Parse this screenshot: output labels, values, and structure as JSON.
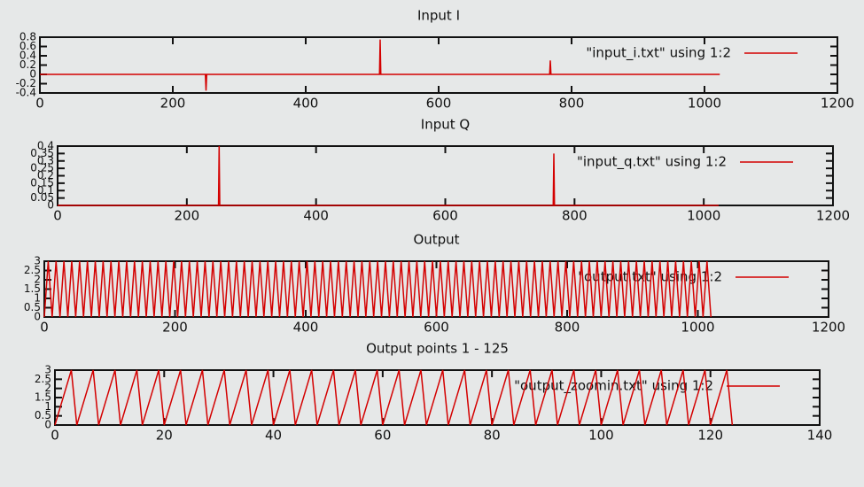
{
  "chart_data": [
    {
      "type": "line",
      "title": "Input I",
      "xlim": [
        0,
        1200
      ],
      "xticks": [
        0,
        200,
        400,
        600,
        800,
        1000,
        1200
      ],
      "ylim": [
        -0.4,
        0.8
      ],
      "yticks": [
        -0.4,
        -0.2,
        0,
        0.2,
        0.4,
        0.6,
        0.8
      ],
      "series": [
        {
          "name": "\"input_i.txt\" using 1:2",
          "color": "#d40000",
          "x": [
            0,
            249,
            250,
            251,
            511,
            512,
            513,
            767,
            768,
            769,
            1023
          ],
          "values": [
            0,
            0,
            -0.35,
            0,
            0,
            0.75,
            0,
            0,
            0.3,
            0,
            0
          ]
        }
      ]
    },
    {
      "type": "line",
      "title": "Input Q",
      "xlim": [
        0,
        1200
      ],
      "xticks": [
        0,
        200,
        400,
        600,
        800,
        1000,
        1200
      ],
      "ylim": [
        0,
        0.4
      ],
      "yticks": [
        0,
        0.05,
        0.1,
        0.15,
        0.2,
        0.25,
        0.3,
        0.35,
        0.4
      ],
      "series": [
        {
          "name": "\"input_q.txt\" using 1:2",
          "color": "#d40000",
          "x": [
            0,
            249,
            250,
            251,
            767,
            768,
            769,
            1023
          ],
          "values": [
            0,
            0,
            0.4,
            0,
            0,
            0.35,
            0,
            0
          ]
        }
      ]
    },
    {
      "type": "line",
      "title": "Output",
      "xlim": [
        0,
        1200
      ],
      "xticks": [
        0,
        200,
        400,
        600,
        800,
        1000,
        1200
      ],
      "ylim": [
        0,
        3
      ],
      "yticks": [
        0,
        0.5,
        1,
        1.5,
        2,
        2.5,
        3
      ],
      "series": [
        {
          "name": "\"output.txt\" using 1:2",
          "color": "#d40000",
          "x": [
            0,
            6,
            12,
            18,
            24,
            30,
            36,
            42,
            48,
            54,
            60,
            66,
            72,
            78,
            84,
            90,
            96,
            102,
            108,
            114,
            120,
            126,
            132,
            138,
            144,
            150,
            156,
            162,
            168,
            174,
            180,
            186,
            192,
            198,
            204,
            210,
            216,
            222,
            228,
            234,
            240,
            246,
            252,
            258,
            264,
            270,
            276,
            282,
            288,
            294,
            300,
            306,
            312,
            318,
            324,
            330,
            336,
            342,
            348,
            354,
            360,
            366,
            372,
            378,
            384,
            390,
            396,
            402,
            408,
            414,
            420,
            426,
            432,
            438,
            444,
            450,
            456,
            462,
            468,
            474,
            480,
            486,
            492,
            498,
            504,
            510,
            516,
            522,
            528,
            534,
            540,
            546,
            552,
            558,
            564,
            570,
            576,
            582,
            588,
            594,
            600,
            606,
            612,
            618,
            624,
            630,
            636,
            642,
            648,
            654,
            660,
            666,
            672,
            678,
            684,
            690,
            696,
            702,
            708,
            714,
            720,
            726,
            732,
            738,
            744,
            750,
            756,
            762,
            768,
            774,
            780,
            786,
            792,
            798,
            804,
            810,
            816,
            822,
            828,
            834,
            840,
            846,
            852,
            858,
            864,
            870,
            876,
            882,
            888,
            894,
            900,
            906,
            912,
            918,
            924,
            930,
            936,
            942,
            948,
            954,
            960,
            966,
            972,
            978,
            984,
            990,
            996,
            1002,
            1008,
            1014,
            1020
          ],
          "values": [
            0,
            3,
            0,
            3,
            0,
            3,
            0,
            3,
            0,
            3,
            0,
            3,
            0,
            3,
            0,
            3,
            0,
            3,
            0,
            3,
            0,
            3,
            0,
            3,
            0,
            3,
            0,
            3,
            0,
            3,
            0,
            3,
            0,
            3,
            0,
            3,
            0,
            3,
            0,
            3,
            0,
            3,
            0,
            3,
            0,
            3,
            0,
            3,
            0,
            3,
            0,
            3,
            0,
            3,
            0,
            3,
            0,
            3,
            0,
            3,
            0,
            3,
            0,
            3,
            0,
            3,
            0,
            3,
            0,
            3,
            0,
            3,
            0,
            3,
            0,
            3,
            0,
            3,
            0,
            3,
            0,
            3,
            0,
            3,
            0,
            3,
            0,
            3,
            0,
            3,
            0,
            3,
            0,
            3,
            0,
            3,
            0,
            3,
            0,
            3,
            0,
            3,
            0,
            3,
            0,
            3,
            0,
            3,
            0,
            3,
            0,
            3,
            0,
            3,
            0,
            3,
            0,
            3,
            0,
            3,
            0,
            3,
            0,
            3,
            0,
            3,
            0,
            3,
            0,
            3,
            0,
            3,
            0,
            3,
            0,
            3,
            0,
            3,
            0,
            3,
            0,
            3,
            0,
            3,
            0,
            3,
            0,
            3,
            0,
            3,
            0,
            3,
            0,
            3,
            0,
            3,
            0,
            3,
            0,
            3,
            0,
            3,
            0,
            3,
            0,
            3,
            0,
            3,
            0,
            3,
            0
          ]
        }
      ]
    },
    {
      "type": "line",
      "title": "Output points 1 - 125",
      "xlim": [
        0,
        140
      ],
      "xticks": [
        0,
        20,
        40,
        60,
        80,
        100,
        120,
        140
      ],
      "ylim": [
        0,
        3
      ],
      "yticks": [
        0,
        0.5,
        1,
        1.5,
        2,
        2.5,
        3
      ],
      "series": [
        {
          "name": "\"output_zoomin.txt\" using 1:2",
          "color": "#d40000",
          "x": [
            0,
            1,
            2,
            3,
            4,
            5,
            6,
            7,
            8,
            9,
            10,
            11,
            12,
            13,
            14,
            15,
            16,
            17,
            18,
            19,
            20,
            21,
            22,
            23,
            24,
            25,
            26,
            27,
            28,
            29,
            30,
            31,
            32,
            33,
            34,
            35,
            36,
            37,
            38,
            39,
            40,
            41,
            42,
            43,
            44,
            45,
            46,
            47,
            48,
            49,
            50,
            51,
            52,
            53,
            54,
            55,
            56,
            57,
            58,
            59,
            60,
            61,
            62,
            63,
            64,
            65,
            66,
            67,
            68,
            69,
            70,
            71,
            72,
            73,
            74,
            75,
            76,
            77,
            78,
            79,
            80,
            81,
            82,
            83,
            84,
            85,
            86,
            87,
            88,
            89,
            90,
            91,
            92,
            93,
            94,
            95,
            96,
            97,
            98,
            99,
            100,
            101,
            102,
            103,
            104,
            105,
            106,
            107,
            108,
            109,
            110,
            111,
            112,
            113,
            114,
            115,
            116,
            117,
            118,
            119,
            120,
            121,
            122,
            123,
            124
          ],
          "values": [
            0,
            1,
            2,
            3,
            0,
            1,
            2,
            3,
            0,
            1,
            2,
            3,
            0,
            1,
            2,
            3,
            0,
            1,
            2,
            3,
            0,
            1,
            2,
            3,
            0,
            1,
            2,
            3,
            0,
            1,
            2,
            3,
            0,
            1,
            2,
            3,
            0,
            1,
            2,
            3,
            0,
            1,
            2,
            3,
            0,
            1,
            2,
            3,
            0,
            1,
            2,
            3,
            0,
            1,
            2,
            3,
            0,
            1,
            2,
            3,
            0,
            1,
            2,
            3,
            0,
            1,
            2,
            3,
            0,
            1,
            2,
            3,
            0,
            1,
            2,
            3,
            0,
            1,
            2,
            3,
            0,
            1,
            2,
            3,
            0,
            1,
            2,
            3,
            0,
            1,
            2,
            3,
            0,
            1,
            2,
            3,
            0,
            1,
            2,
            3,
            0,
            1,
            2,
            3,
            0,
            1,
            2,
            3,
            0,
            1,
            2,
            3,
            0,
            1,
            2,
            3,
            0,
            1,
            2,
            3,
            0,
            1,
            2,
            3,
            0
          ]
        }
      ]
    }
  ]
}
